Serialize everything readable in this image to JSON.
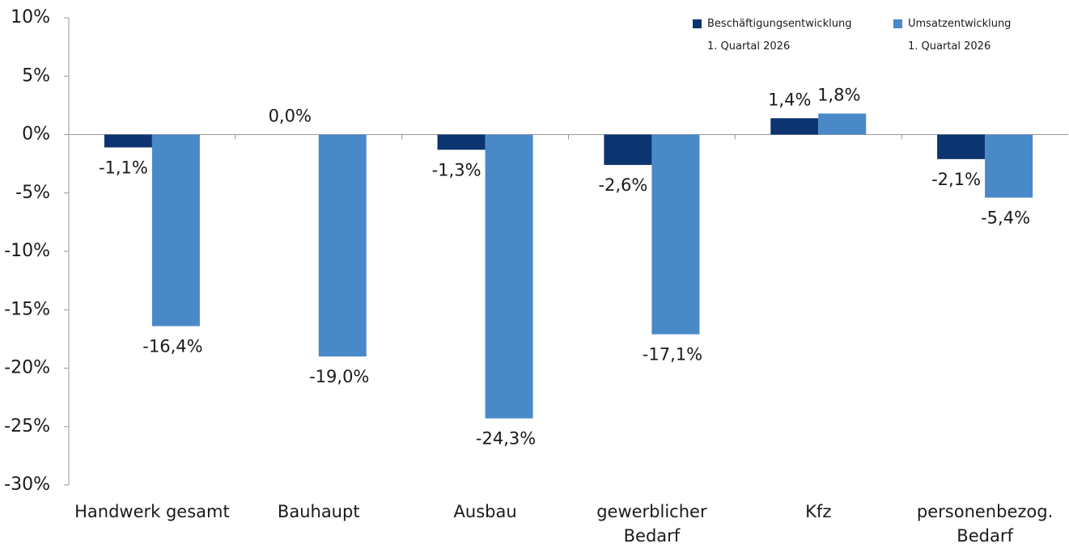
{
  "chart_data": {
    "type": "bar",
    "categories": [
      "Handwerk gesamt",
      "Bauhaupt",
      "Ausbau",
      "gewerblicher\nBedarf",
      "Kfz",
      "personenbezog.\nBedarf"
    ],
    "series": [
      {
        "name": "Beschäftigungsentwicklung\n1. Quartal 2026",
        "color": "#0b3470",
        "values": [
          -1.1,
          0.0,
          -1.3,
          -2.6,
          1.4,
          -2.1
        ],
        "value_labels": [
          "-1,1%",
          "0,0%",
          "-1,3%",
          "-2,6%",
          "1,4%",
          "-2,1%"
        ]
      },
      {
        "name": "Umsatzentwicklung\n1. Quartal 2026",
        "color": "#4a89c8",
        "values": [
          -16.4,
          -19.0,
          -24.3,
          -17.1,
          1.8,
          -5.4
        ],
        "value_labels": [
          "-16,4%",
          "-19,0%",
          "-24,3%",
          "-17,1%",
          "1,8%",
          "-5,4%"
        ]
      }
    ],
    "ylim": [
      -30,
      10
    ],
    "yticks": [
      {
        "value": 10,
        "label": "10%"
      },
      {
        "value": 5,
        "label": "5%"
      },
      {
        "value": 0,
        "label": "0%"
      },
      {
        "value": -5,
        "label": "-5%"
      },
      {
        "value": -10,
        "label": "-10%"
      },
      {
        "value": -15,
        "label": "-15%"
      },
      {
        "value": -20,
        "label": "-20%"
      },
      {
        "value": -25,
        "label": "-25%"
      },
      {
        "value": -30,
        "label": "-30%"
      }
    ],
    "legend": "top-right",
    "grid": false
  }
}
